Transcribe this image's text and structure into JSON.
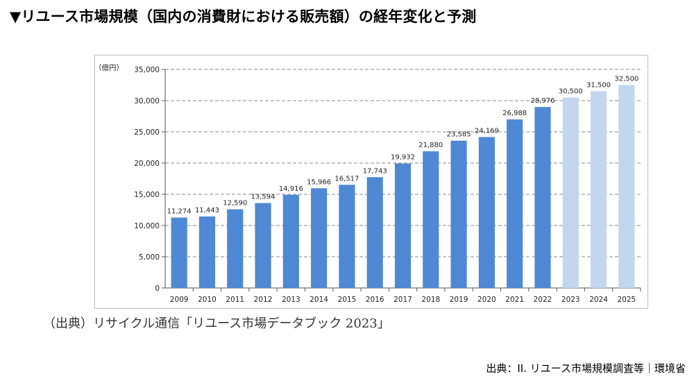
{
  "heading": "▼リユース市場規模（国内の消費財における販売額）の経年変化と予測",
  "chart_data": {
    "type": "bar",
    "unit_label": "（億円）",
    "categories": [
      "2009",
      "2010",
      "2011",
      "2012",
      "2013",
      "2014",
      "2015",
      "2016",
      "2017",
      "2018",
      "2019",
      "2020",
      "2021",
      "2022",
      "2023",
      "2024",
      "2025"
    ],
    "values": [
      11274,
      11443,
      12590,
      13594,
      14916,
      15966,
      16517,
      17743,
      19932,
      21880,
      23585,
      24169,
      26988,
      28976,
      30500,
      31500,
      32500
    ],
    "value_labels": [
      "11,274",
      "11,443",
      "12,590",
      "13,594",
      "14,916",
      "15,966",
      "16,517",
      "17,743",
      "19,932",
      "21,880",
      "23,585",
      "24,169",
      "26,988",
      "28,976",
      "30,500",
      "31,500",
      "32,500"
    ],
    "forecast_from": "2023",
    "ylim": [
      0,
      35000
    ],
    "yticks": [
      0,
      5000,
      10000,
      15000,
      20000,
      25000,
      30000,
      35000
    ],
    "ytick_labels": [
      "0",
      "5,000",
      "10,000",
      "15,000",
      "20,000",
      "25,000",
      "30,000",
      "35,000"
    ],
    "grid": true,
    "colors": {
      "actual": "#4f88d3",
      "forecast": "#c3d6ef",
      "grid": "#8a8a8a"
    },
    "source": "（出典）リサイクル通信「リユース市場データブック 2023」"
  },
  "page_source": "出典：II. リユース市場規模調査等｜環境省"
}
